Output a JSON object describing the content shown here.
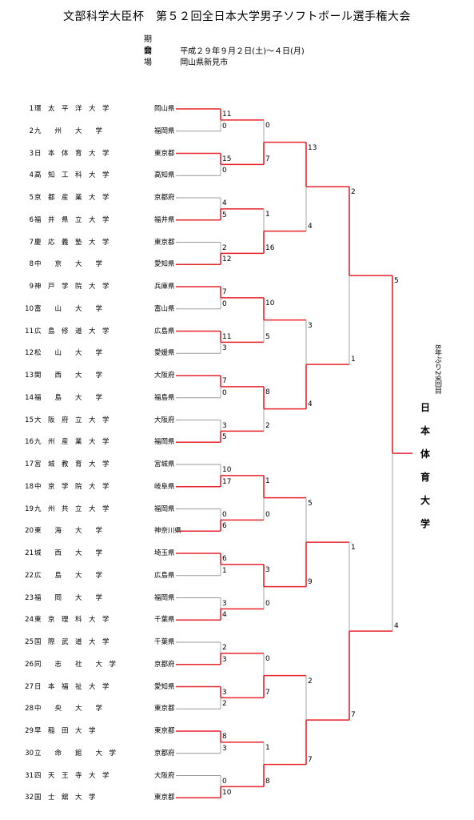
{
  "header": {
    "title": "文部科学大臣杯　第５２回全日本大学男子ソフトボール選手権大会",
    "dates_label": "期　間",
    "dates_value": "平成２９年９月２日(土)～４日(月)",
    "venue_label": "会　場",
    "venue_value": "岡山県新見市"
  },
  "teams": [
    {
      "seed": "1",
      "name": "環　太　平　洋　大　学",
      "pref": "岡山県"
    },
    {
      "seed": "2",
      "name": "九　　州　　大　　学",
      "pref": "福岡県"
    },
    {
      "seed": "3",
      "name": "日　本　体　育　大　学",
      "pref": "東京都"
    },
    {
      "seed": "4",
      "name": "高　知　工　科　大　学",
      "pref": "高知県"
    },
    {
      "seed": "5",
      "name": "京　都　産　業　大　学",
      "pref": "京都府"
    },
    {
      "seed": "6",
      "name": "福　井　県　立　大　学",
      "pref": "福井県"
    },
    {
      "seed": "7",
      "name": "慶　応　義　塾　大　学",
      "pref": "東京都"
    },
    {
      "seed": "8",
      "name": "中　　京　　大　　学",
      "pref": "愛知県"
    },
    {
      "seed": "9",
      "name": "神　戸　学　院　大　学",
      "pref": "兵庫県"
    },
    {
      "seed": "10",
      "name": "富　　山　　大　　学",
      "pref": "富山県"
    },
    {
      "seed": "11",
      "name": "広　島　修　道　大　学",
      "pref": "広島県"
    },
    {
      "seed": "12",
      "name": "松　　山　　大　　学",
      "pref": "愛媛県"
    },
    {
      "seed": "13",
      "name": "関　　西　　大　　学",
      "pref": "大阪府"
    },
    {
      "seed": "14",
      "name": "福　　島　　大　　学",
      "pref": "福島県"
    },
    {
      "seed": "15",
      "name": "大　阪　府　立　大　学",
      "pref": "大阪府"
    },
    {
      "seed": "16",
      "name": "九　州　産　業　大　学",
      "pref": "福岡県"
    },
    {
      "seed": "17",
      "name": "宮　城　教　育　大　学",
      "pref": "宮城県"
    },
    {
      "seed": "18",
      "name": "中　京　学　院　大　学",
      "pref": "岐阜県"
    },
    {
      "seed": "19",
      "name": "九　州　共　立　大　学",
      "pref": "福岡県"
    },
    {
      "seed": "20",
      "name": "東　　海　　大　　学",
      "pref": "神奈川県"
    },
    {
      "seed": "21",
      "name": "城　　西　　大　　学",
      "pref": "埼玉県"
    },
    {
      "seed": "22",
      "name": "広　　島　　大　　学",
      "pref": "広島県"
    },
    {
      "seed": "23",
      "name": "福　　岡　　大　　学",
      "pref": "福岡県"
    },
    {
      "seed": "24",
      "name": "東　京　理　科　大　学",
      "pref": "千葉県"
    },
    {
      "seed": "25",
      "name": "国　際　武　道　大　学",
      "pref": "千葉県"
    },
    {
      "seed": "26",
      "name": "同　　志　　社　　大　学",
      "pref": "京都府"
    },
    {
      "seed": "27",
      "name": "日　本　福　祉　大　学",
      "pref": "愛知県"
    },
    {
      "seed": "28",
      "name": "中　　央　　大　　学",
      "pref": "東京都"
    },
    {
      "seed": "29",
      "name": "早　稲　田　大　学",
      "pref": "東京都"
    },
    {
      "seed": "30",
      "name": "立　　命　　館　　大　学",
      "pref": "京都府"
    },
    {
      "seed": "31",
      "name": "四　天　王　寺　大　学",
      "pref": "大阪府"
    },
    {
      "seed": "32",
      "name": "国　士　舘　大　学",
      "pref": "東京都"
    }
  ],
  "rounds": [
    [
      {
        "s1": "11",
        "s2": "0",
        "w": 0
      },
      {
        "s1": "15",
        "s2": "0",
        "w": 0
      },
      {
        "s1": "4",
        "s2": "5",
        "w": 1
      },
      {
        "s1": "2",
        "s2": "12",
        "w": 1
      },
      {
        "s1": "7",
        "s2": "0",
        "w": 0
      },
      {
        "s1": "11",
        "s2": "3",
        "w": 0
      },
      {
        "s1": "7",
        "s2": "0",
        "w": 0
      },
      {
        "s1": "3",
        "s2": "5",
        "w": 1
      },
      {
        "s1": "10",
        "s2": "17",
        "w": 1
      },
      {
        "s1": "0",
        "s2": "6",
        "w": 1
      },
      {
        "s1": "6",
        "s2": "1",
        "w": 0
      },
      {
        "s1": "3",
        "s2": "4",
        "w": 1
      },
      {
        "s1": "2",
        "s2": "3",
        "w": 1
      },
      {
        "s1": "3",
        "s2": "2",
        "w": 0
      },
      {
        "s1": "8",
        "s2": "3",
        "w": 0
      },
      {
        "s1": "0",
        "s2": "10",
        "w": 1
      }
    ],
    [
      {
        "s1": "0",
        "s2": "7",
        "w": 1
      },
      {
        "s1": "1",
        "s2": "16",
        "w": 1
      },
      {
        "s1": "10",
        "s2": "5",
        "w": 0
      },
      {
        "s1": "8",
        "s2": "2",
        "w": 0
      },
      {
        "s1": "1",
        "s2": "0",
        "w": 0
      },
      {
        "s1": "3",
        "s2": "0",
        "w": 0
      },
      {
        "s1": "0",
        "s2": "7",
        "w": 1
      },
      {
        "s1": "1",
        "s2": "8",
        "w": 1
      }
    ],
    [
      {
        "s1": "13",
        "s2": "4",
        "w": 0
      },
      {
        "s1": "3",
        "s2": "4",
        "w": 1
      },
      {
        "s1": "5",
        "s2": "9",
        "w": 1
      },
      {
        "s1": "2",
        "s2": "7",
        "w": 1
      }
    ],
    [
      {
        "s1": "2",
        "s2": "1",
        "w": 0
      },
      {
        "s1": "1",
        "s2": "7",
        "w": 1
      }
    ],
    [
      {
        "s1": "5",
        "s2": "4",
        "w": 0
      }
    ]
  ],
  "champion": {
    "note": "8年ぶり29回目",
    "name": [
      "日",
      "本",
      "体",
      "育",
      "大",
      "学"
    ]
  },
  "colors": {
    "winner_line": "#e8232a",
    "loser_line": "#9a9a9a"
  }
}
